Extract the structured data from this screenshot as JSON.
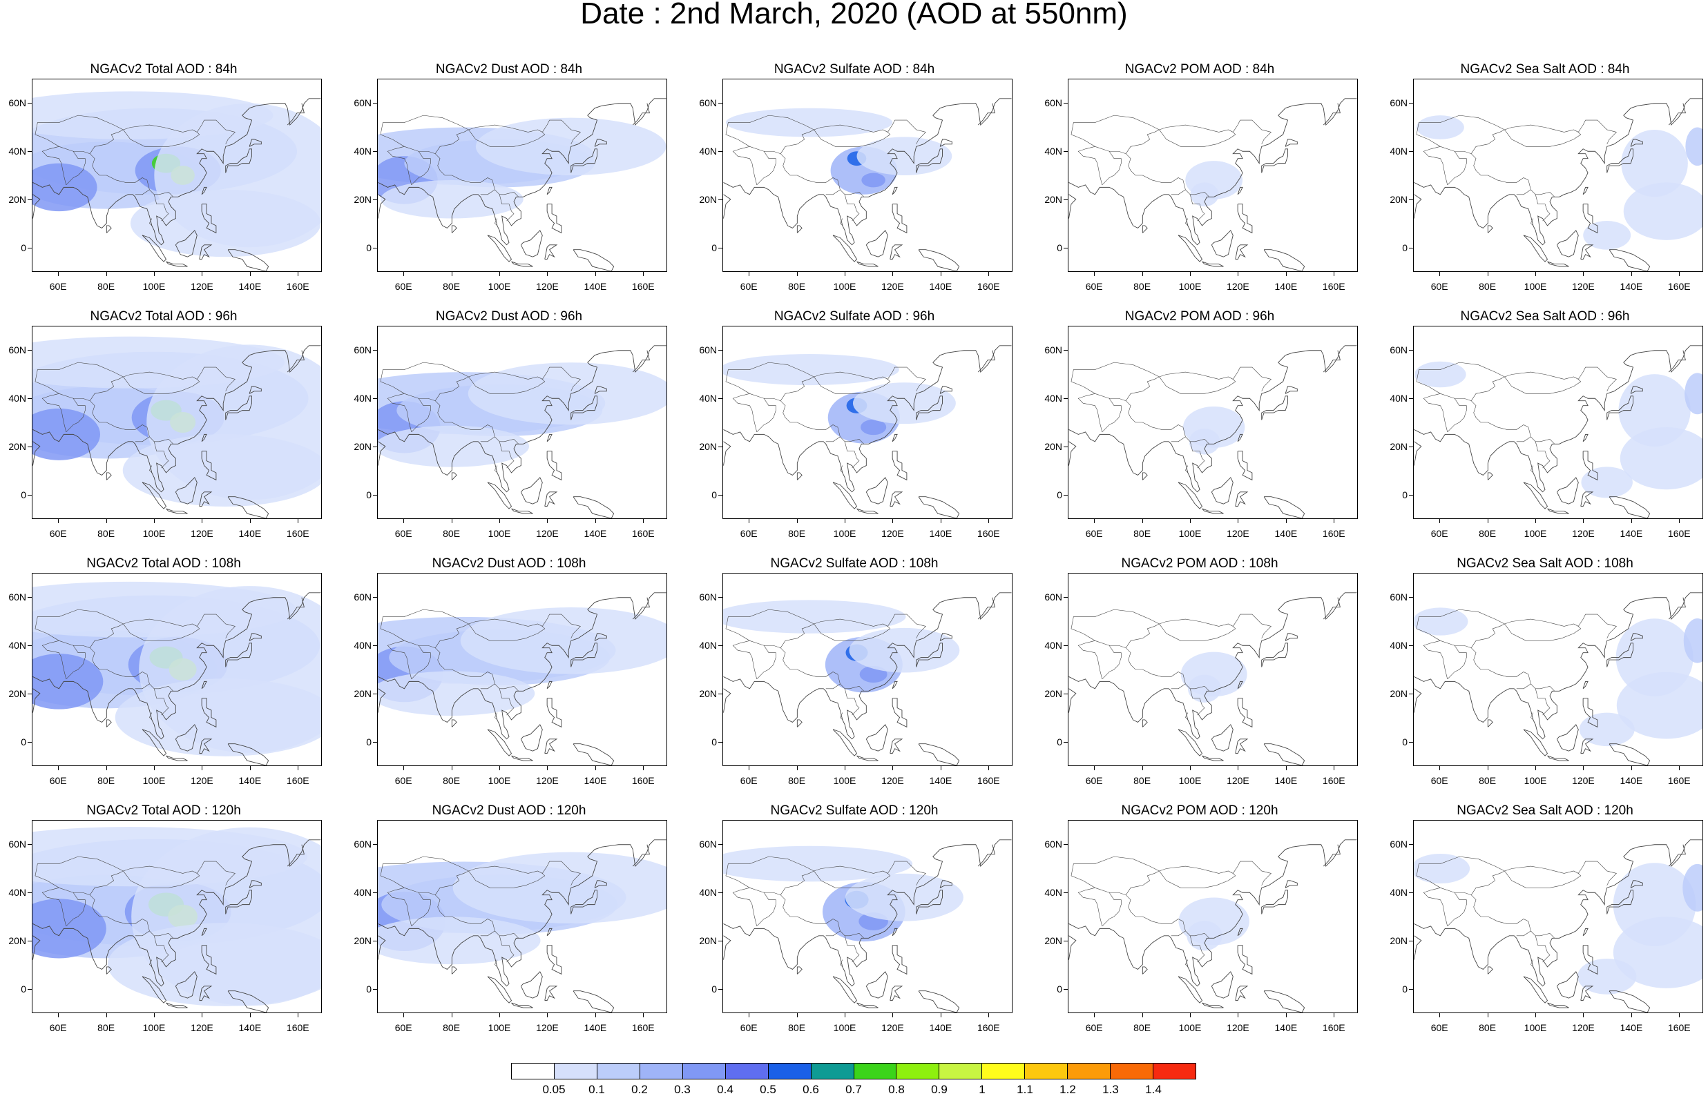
{
  "title": "Date : 2nd March, 2020 (AOD at 550nm)",
  "lat_ticks": [
    "60N",
    "40N",
    "20N",
    "0"
  ],
  "lon_ticks": [
    "60E",
    "80E",
    "100E",
    "120E",
    "140E",
    "160E"
  ],
  "panel_titles": [
    [
      "NGACv2 Total AOD : 84h",
      "NGACv2 Dust AOD : 84h",
      "NGACv2 Sulfate AOD : 84h",
      "NGACv2 POM AOD : 84h",
      "NGACv2 Sea Salt AOD : 84h"
    ],
    [
      "NGACv2 Total AOD : 96h",
      "NGACv2 Dust AOD : 96h",
      "NGACv2 Sulfate AOD : 96h",
      "NGACv2 POM AOD : 96h",
      "NGACv2 Sea Salt AOD : 96h"
    ],
    [
      "NGACv2 Total AOD : 108h",
      "NGACv2 Dust AOD : 108h",
      "NGACv2 Sulfate AOD : 108h",
      "NGACv2 POM AOD : 108h",
      "NGACv2 Sea Salt AOD : 108h"
    ],
    [
      "NGACv2 Total AOD : 120h",
      "NGACv2 Dust AOD : 120h",
      "NGACv2 Sulfate AOD : 120h",
      "NGACv2 POM AOD : 120h",
      "NGACv2 Sea Salt  AOD : 120h"
    ]
  ],
  "colorbar": {
    "labels": [
      "0.05",
      "0.1",
      "0.2",
      "0.3",
      "0.4",
      "0.5",
      "0.6",
      "0.7",
      "0.8",
      "0.9",
      "1",
      "1.1",
      "1.2",
      "1.3",
      "1.4"
    ],
    "colors": [
      "#ffffff",
      "#d6e0fb",
      "#bccdfa",
      "#9fb4f8",
      "#8098f5",
      "#5f6ef0",
      "#1a60e8",
      "#0e9b94",
      "#3bd41a",
      "#8ef00f",
      "#c8f542",
      "#fffd1c",
      "#fdc80e",
      "#fc9b08",
      "#f96a07",
      "#f72a10"
    ]
  },
  "map_style": {
    "land_line": "#444444",
    "species_colors": {
      "total": "#9fb4f8",
      "dust": "#9fb4f8",
      "sulfate": "#9fb4f8",
      "pom": "#bccdfa",
      "seasalt": "#bccdfa"
    }
  }
}
